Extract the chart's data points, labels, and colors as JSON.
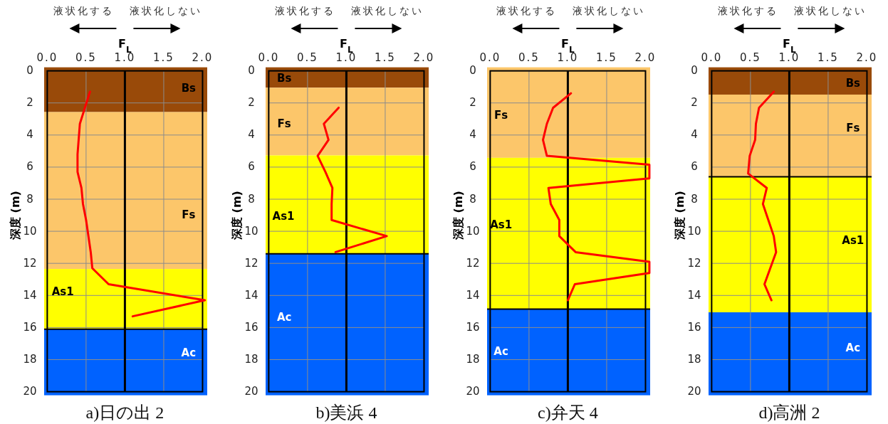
{
  "chart_data": [
    {
      "type": "line",
      "title": "a)日の出 2",
      "xlabel": "F$_{L}$",
      "ylabel": "深度 (m)",
      "annotations": [
        "液状化する",
        "液状化しない"
      ],
      "xlim": [
        -0.04,
        2.06
      ],
      "xticks": [
        {
          "value": 0,
          "label": "0.0"
        },
        {
          "value": 0.5,
          "label": "0.5"
        },
        {
          "value": 1,
          "label": "1.0"
        },
        {
          "value": 1.5,
          "label": "1.5"
        },
        {
          "value": 2,
          "label": "2.0"
        }
      ],
      "ylim": [
        20,
        0
      ],
      "yticks": [
        0,
        2,
        4,
        6,
        8,
        10,
        12,
        14,
        16,
        18,
        20
      ],
      "grid": true,
      "bands": [
        {
          "axis": "y",
          "from": 0,
          "to": 2.57,
          "color": "#994a09",
          "label": "Bs"
        },
        {
          "axis": "y",
          "from": 2.57,
          "to": 12.35,
          "color": "#fcc66a",
          "label": "Fs"
        },
        {
          "axis": "y",
          "from": 12.35,
          "to": 16.1,
          "color": "#ffff00",
          "label": "As1"
        },
        {
          "axis": "y",
          "from": 16.1,
          "to": 20,
          "color": "#0062ff",
          "label": "Ac"
        }
      ],
      "ref_lines": [
        {
          "axis": "x",
          "value": 1.0,
          "color": "#000000"
        },
        {
          "axis": "y",
          "value": 16.1,
          "color": "#000000"
        }
      ],
      "series": [
        {
          "color": "#ff0000",
          "x": [
            0.55,
            0.42,
            0.39,
            0.39,
            0.44,
            0.46,
            0.5,
            0.56,
            0.58,
            0.79,
            2.03,
            1.1
          ],
          "values": [
            1.3,
            3.3,
            5.2,
            6.3,
            7.3,
            8.3,
            9.3,
            11.3,
            12.3,
            13.3,
            14.3,
            15.3
          ]
        }
      ]
    },
    {
      "type": "line",
      "title": "b)美浜 4",
      "xlabel": "F$_{L}$",
      "ylabel": "深度 (m)",
      "annotations": [
        "液状化する",
        "液状化しない"
      ],
      "xlim": [
        -0.04,
        2.06
      ],
      "xticks": [
        {
          "value": 0,
          "label": "0.0"
        },
        {
          "value": 0.5,
          "label": "0.5"
        },
        {
          "value": 1,
          "label": "1.0"
        },
        {
          "value": 1.5,
          "label": "1.5"
        },
        {
          "value": 2,
          "label": "2.0"
        }
      ],
      "ylim": [
        20,
        0
      ],
      "yticks": [
        0,
        2,
        4,
        6,
        8,
        10,
        12,
        14,
        16,
        18,
        20
      ],
      "grid": true,
      "bands": [
        {
          "axis": "y",
          "from": 0,
          "to": 1.05,
          "color": "#994a09",
          "label": "Bs"
        },
        {
          "axis": "y",
          "from": 1.05,
          "to": 5.27,
          "color": "#fcc66a",
          "label": "Fs"
        },
        {
          "axis": "y",
          "from": 5.27,
          "to": 11.4,
          "color": "#ffff00",
          "label": "As1"
        },
        {
          "axis": "y",
          "from": 11.4,
          "to": 20,
          "color": "#0062ff",
          "label": "Ac"
        }
      ],
      "ref_lines": [
        {
          "axis": "x",
          "value": 1.0,
          "color": "#000000"
        },
        {
          "axis": "y",
          "value": 11.4,
          "color": "#000000"
        }
      ],
      "series": [
        {
          "color": "#ff0000",
          "x": [
            0.9,
            0.71,
            0.77,
            0.63,
            0.73,
            0.82,
            0.81,
            0.81,
            1.52,
            0.86
          ],
          "values": [
            2.3,
            3.3,
            4.3,
            5.3,
            6.3,
            7.3,
            8.3,
            9.3,
            10.3,
            11.3
          ]
        }
      ]
    },
    {
      "type": "line",
      "title": "c)弁天 4",
      "xlabel": "F$_{L}$",
      "ylabel": "深度 (m)",
      "annotations": [
        "液状化する",
        "液状化しない"
      ],
      "xlim": [
        -0.04,
        2.06
      ],
      "xticks": [
        {
          "value": 0,
          "label": "0.0"
        },
        {
          "value": 0.5,
          "label": "0.5"
        },
        {
          "value": 1,
          "label": "1.0"
        },
        {
          "value": 1.5,
          "label": "1.5"
        },
        {
          "value": 2,
          "label": "2.0"
        }
      ],
      "ylim": [
        20,
        0
      ],
      "yticks": [
        0,
        2,
        4,
        6,
        8,
        10,
        12,
        14,
        16,
        18,
        20
      ],
      "grid": true,
      "bands": [
        {
          "axis": "y",
          "from": 0,
          "to": 5.42,
          "color": "#fcc66a",
          "label": "Fs"
        },
        {
          "axis": "y",
          "from": 5.42,
          "to": 14.85,
          "color": "#ffff00",
          "label": "As1"
        },
        {
          "axis": "y",
          "from": 14.85,
          "to": 20,
          "color": "#0062ff",
          "label": "Ac"
        }
      ],
      "ref_lines": [
        {
          "axis": "x",
          "value": 1.0,
          "color": "#000000"
        },
        {
          "axis": "y",
          "value": 14.85,
          "color": "#000000"
        }
      ],
      "series": [
        {
          "color": "#ff0000",
          "x": [
            1.04,
            0.81,
            0.73,
            0.68,
            0.73,
            2.05,
            2.05,
            0.75,
            0.78,
            0.89,
            0.89,
            1.1,
            2.05,
            2.05,
            1.09,
            1.0
          ],
          "values": [
            1.4,
            2.3,
            3.3,
            4.3,
            5.3,
            5.85,
            6.7,
            7.3,
            8.3,
            9.3,
            10.3,
            11.3,
            11.9,
            12.6,
            13.3,
            14.3
          ]
        }
      ]
    },
    {
      "type": "line",
      "title": "d)高洲 2",
      "xlabel": "F$_{L}$",
      "ylabel": "深度 (m)",
      "annotations": [
        "液状化する",
        "液状化しない"
      ],
      "xlim": [
        -0.04,
        2.06
      ],
      "xticks": [
        {
          "value": 0,
          "label": "0.0"
        },
        {
          "value": 0.5,
          "label": "0.5"
        },
        {
          "value": 1,
          "label": "1.0"
        },
        {
          "value": 1.5,
          "label": "1.5"
        },
        {
          "value": 2,
          "label": "2.0"
        }
      ],
      "ylim": [
        20,
        0
      ],
      "yticks": [
        0,
        2,
        4,
        6,
        8,
        10,
        12,
        14,
        16,
        18,
        20
      ],
      "grid": true,
      "bands": [
        {
          "axis": "y",
          "from": 0,
          "to": 1.48,
          "color": "#994a09",
          "label": "Bs"
        },
        {
          "axis": "y",
          "from": 1.48,
          "to": 6.6,
          "color": "#fcc66a",
          "label": "Fs"
        },
        {
          "axis": "y",
          "from": 6.6,
          "to": 15.05,
          "color": "#ffff00",
          "label": "As1"
        },
        {
          "axis": "y",
          "from": 15.05,
          "to": 20,
          "color": "#0062ff",
          "label": "Ac"
        }
      ],
      "ref_lines": [
        {
          "axis": "x",
          "value": 1.0,
          "color": "#000000"
        },
        {
          "axis": "y",
          "value": 6.6,
          "color": "#000000"
        }
      ],
      "series": [
        {
          "color": "#ff0000",
          "x": [
            0.8,
            0.61,
            0.57,
            0.56,
            0.49,
            0.47,
            0.71,
            0.66,
            0.73,
            0.8,
            0.83,
            0.68,
            0.77
          ],
          "values": [
            1.3,
            2.3,
            3.3,
            4.3,
            5.3,
            6.4,
            7.3,
            8.3,
            9.3,
            10.3,
            11.3,
            13.3,
            14.3
          ]
        }
      ]
    }
  ]
}
